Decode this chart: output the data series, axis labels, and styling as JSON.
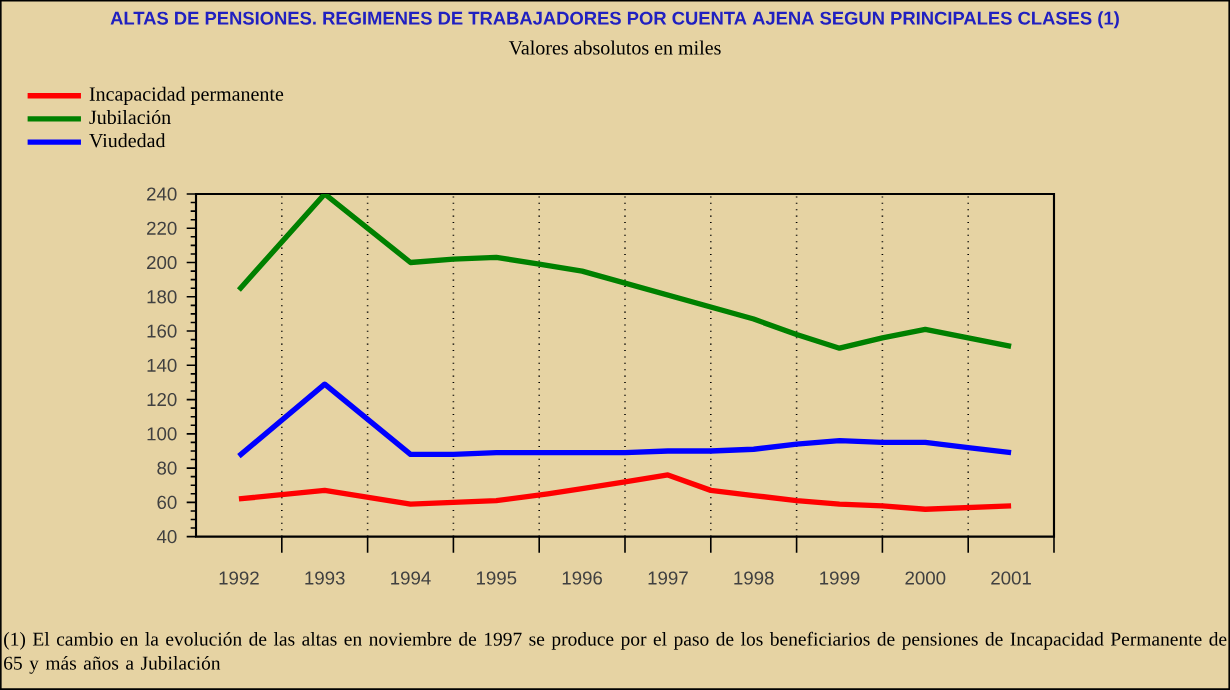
{
  "chart_data": {
    "type": "line",
    "title": "ALTAS DE PENSIONES. REGIMENES DE TRABAJADORES POR CUENTA AJENA SEGUN PRINCIPALES CLASES (1)",
    "subtitle": "Valores absolutos en miles",
    "annotations": [
      "(1) El cambio en la evolución de las altas en noviembre de 1997 se produce por el paso de los beneficiarios de pensiones de Incapacidad Permanente de 65 y más años a Jubilación"
    ],
    "series": [
      {
        "name": "Incapacidad permanente",
        "color": "#ff0000",
        "x": [
          1992,
          1993,
          1994,
          1994.5,
          1995,
          1995.6,
          1996,
          1996.5,
          1997,
          1997.5,
          1998,
          1998.5,
          1999,
          1999.5,
          2000,
          2000.5,
          2001
        ],
        "values": [
          62,
          67,
          59,
          60,
          61,
          65,
          68,
          72,
          76,
          67,
          64,
          61,
          59,
          58,
          56,
          57,
          58
        ]
      },
      {
        "name": "Jubilación",
        "color": "#008000",
        "x": [
          1992,
          1993,
          1994,
          1994.5,
          1995,
          1995.5,
          1996,
          1996.5,
          1997,
          1997.5,
          1998,
          1998.5,
          1999,
          1999.5,
          2000,
          2000.5,
          2001
        ],
        "values": [
          184,
          240,
          200,
          202,
          203,
          199,
          195,
          188,
          181,
          174,
          167,
          158,
          150,
          156,
          161,
          156,
          151
        ]
      },
      {
        "name": "Viudedad",
        "color": "#0000ff",
        "x": [
          1992,
          1993,
          1994,
          1994.5,
          1995,
          1995.5,
          1996,
          1996.5,
          1997,
          1997.5,
          1998,
          1998.5,
          1999,
          1999.5,
          2000,
          2000.5,
          2001
        ],
        "values": [
          87,
          129,
          88,
          88,
          89,
          89,
          89,
          89,
          90,
          90,
          91,
          94,
          96,
          95,
          95,
          92,
          89
        ]
      }
    ],
    "xlim": [
      1991.5,
      2001.5
    ],
    "xticks": [
      1992,
      1993,
      1994,
      1995,
      1996,
      1997,
      1998,
      1999,
      2000,
      2001,
      {
        "value": 1992.5,
        "label": null
      },
      {
        "value": 1993.5,
        "label": null
      },
      {
        "value": 1994.5,
        "label": null
      },
      {
        "value": 1995.5,
        "label": null
      },
      {
        "value": 1996.5,
        "label": null
      },
      {
        "value": 1997.5,
        "label": null
      },
      {
        "value": 1998.5,
        "label": null
      },
      {
        "value": 1999.5,
        "label": null
      },
      {
        "value": 2000.5,
        "label": null
      },
      {
        "value": 2001.5,
        "label": null
      }
    ],
    "ylim": [
      40,
      240
    ],
    "yticks": [
      40,
      60,
      80,
      100,
      120,
      140,
      160,
      180,
      200,
      220,
      240
    ],
    "grid": "x",
    "legend": "top left",
    "marker": "none",
    "line_style": "solid"
  }
}
